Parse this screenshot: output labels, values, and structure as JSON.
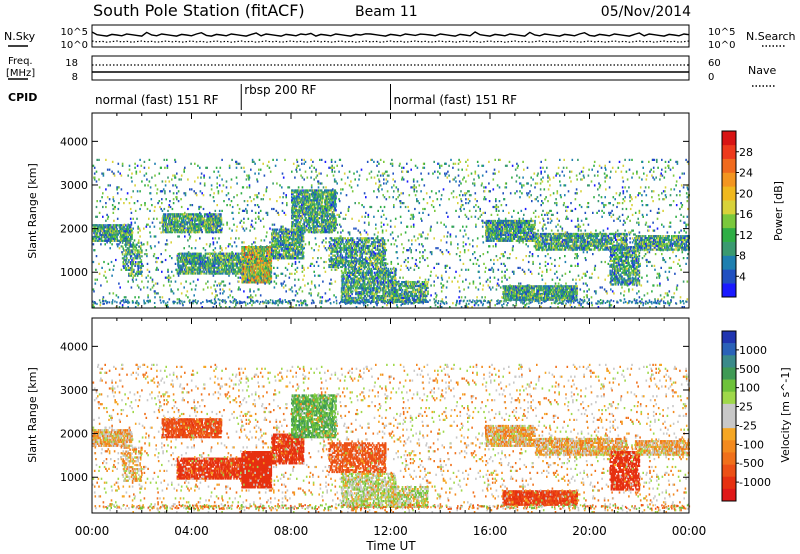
{
  "header": {
    "station": "South Pole Station (fitACF)",
    "beam": "Beam 11",
    "date": "05/Nov/2014"
  },
  "chart_data": {
    "type": "heatmap",
    "xlabel": "Time UT",
    "x_ticks": [
      "00:00",
      "04:00",
      "08:00",
      "12:00",
      "16:00",
      "20:00",
      "00:00"
    ],
    "xlim_hours": [
      0,
      24
    ],
    "sky_panel": {
      "left_label": "N.Sky",
      "left_ticks": [
        "10^5",
        "10^0"
      ],
      "right_label": "N.Search",
      "right_ticks": [
        "10^5",
        "10^0"
      ]
    },
    "freq_panel": {
      "left_label_line1": "Freq.",
      "left_label_line2": "[MHz]",
      "left_ticks": [
        "18",
        "8"
      ],
      "right_label": "Nave",
      "right_ticks": [
        "60",
        "0"
      ]
    },
    "cpid": {
      "label": "CPID",
      "segments": [
        {
          "start_h": 0,
          "end_h": 6,
          "text": "normal (fast) 151 RF"
        },
        {
          "start_h": 6,
          "end_h": 12,
          "text": "rbsp 200 RF"
        },
        {
          "start_h": 12,
          "end_h": 24,
          "text": "normal (fast) 151 RF"
        }
      ]
    },
    "power_panel": {
      "ylabel": "Slant Range [km]",
      "ylim_km": [
        180,
        4650
      ],
      "y_ticks": [
        1000,
        2000,
        3000,
        4000
      ],
      "colorbar_label": "Power [dB]",
      "colorbar_range": [
        0,
        32
      ],
      "colorbar_ticks": [
        4,
        8,
        12,
        16,
        20,
        24,
        28
      ],
      "colorbar_colors": [
        "#1a1aff",
        "#2050c0",
        "#1e7fb0",
        "#3a9a70",
        "#2fae45",
        "#7ac83c",
        "#d8d23a",
        "#f0b81e",
        "#f39520",
        "#f06a1e",
        "#ee3a1c",
        "#d81414"
      ]
    },
    "velocity_panel": {
      "ylabel": "Slant Range [km]",
      "ylim_km": [
        180,
        4650
      ],
      "y_ticks": [
        1000,
        2000,
        3000,
        4000
      ],
      "colorbar_label": "Velocity [m s^-1]",
      "colorbar_ticks": [
        "1000",
        "500",
        "100",
        "25",
        "-25",
        "-100",
        "-500",
        "-1000"
      ],
      "colorbar_colors": [
        "#2035b0",
        "#2a62b8",
        "#3a8a8a",
        "#3f9a55",
        "#6ec23a",
        "#9fd84a",
        "#c8c8c8",
        "#c8c8c8",
        "#f5a623",
        "#f38a1e",
        "#f0701a",
        "#ec5015",
        "#e63010",
        "#e01818"
      ]
    },
    "scatter_regions": [
      {
        "t0": 0.0,
        "t1": 1.6,
        "r0": 1700,
        "r1": 2100,
        "p": 0.6,
        "v": -10
      },
      {
        "t0": 1.2,
        "t1": 2.0,
        "r0": 900,
        "r1": 1700,
        "p": 0.3,
        "v": 0
      },
      {
        "t0": 2.8,
        "t1": 5.2,
        "r0": 1900,
        "r1": 2350,
        "p": 0.6,
        "v": -250
      },
      {
        "t0": 3.4,
        "t1": 6.0,
        "r0": 950,
        "r1": 1450,
        "p": 0.6,
        "v": -350
      },
      {
        "t0": 6.0,
        "t1": 7.2,
        "r0": 750,
        "r1": 1600,
        "p": 0.85,
        "v": -400
      },
      {
        "t0": 7.2,
        "t1": 8.5,
        "r0": 1300,
        "r1": 2000,
        "p": 0.55,
        "v": -350
      },
      {
        "t0": 8.0,
        "t1": 9.8,
        "r0": 1900,
        "r1": 2900,
        "p": 0.55,
        "v": 300
      },
      {
        "t0": 9.5,
        "t1": 11.8,
        "r0": 1100,
        "r1": 1800,
        "p": 0.45,
        "v": -200
      },
      {
        "t0": 10.0,
        "t1": 12.2,
        "r0": 300,
        "r1": 1100,
        "p": 0.45,
        "v": 60
      },
      {
        "t0": 12.0,
        "t1": 13.5,
        "r0": 300,
        "r1": 800,
        "p": 0.45,
        "v": 60
      },
      {
        "t0": 15.8,
        "t1": 17.8,
        "r0": 1700,
        "r1": 2200,
        "p": 0.6,
        "v": -10
      },
      {
        "t0": 17.8,
        "t1": 21.5,
        "r0": 1500,
        "r1": 1900,
        "p": 0.55,
        "v": -10
      },
      {
        "t0": 16.5,
        "t1": 19.5,
        "r0": 350,
        "r1": 700,
        "p": 0.7,
        "v": -300
      },
      {
        "t0": 20.8,
        "t1": 22.0,
        "r0": 700,
        "r1": 1600,
        "p": 0.5,
        "v": -400
      },
      {
        "t0": 21.8,
        "t1": 24.0,
        "r0": 1500,
        "r1": 1850,
        "p": 0.55,
        "v": -10
      },
      {
        "t0": 0.0,
        "t1": 24.0,
        "r0": 180,
        "r1": 3600,
        "p": 0.04,
        "v": 0
      }
    ]
  }
}
